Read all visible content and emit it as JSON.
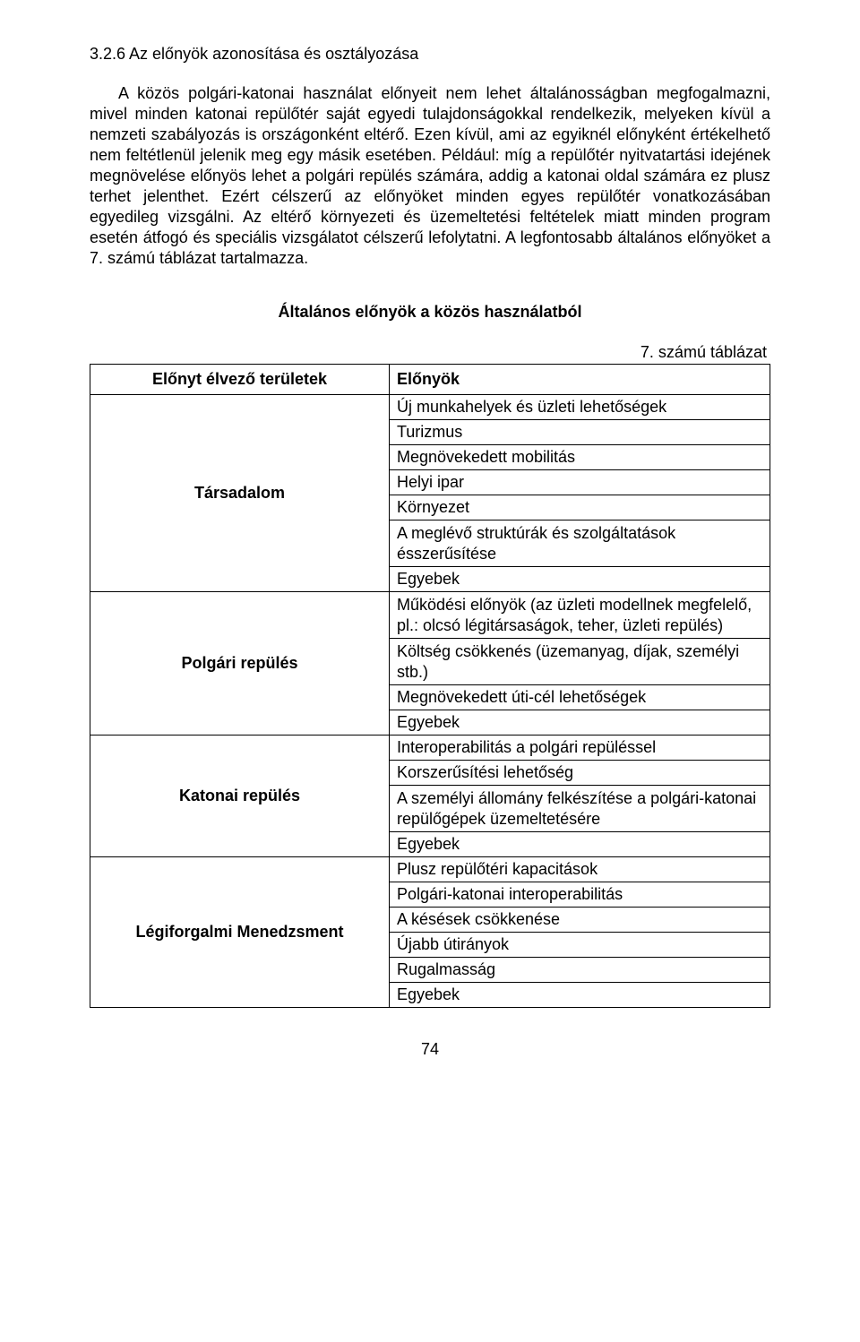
{
  "heading": "3.2.6  Az előnyök azonosítása és osztályozása",
  "paragraph": "A közös polgári-katonai használat előnyeit nem lehet általánosságban megfogalmazni, mivel minden katonai repülőtér saját egyedi tulajdonságokkal rendelkezik, melyeken kívül a nemzeti szabályozás is országonként eltérő. Ezen kívül, ami az egyiknél előnyként értékelhető nem feltétlenül jelenik meg egy másik esetében. Például: míg a repülőtér nyitvatartási idejének megnövelése előnyös lehet a polgári repülés számára, addig a katonai oldal számára ez plusz terhet jelenthet. Ezért célszerű az előnyöket minden egyes repülőtér vonatkozásában egyedileg vizsgálni. Az eltérő környezeti és üzemeltetési feltételek miatt minden program esetén átfogó és speciális vizsgálatot célszerű lefolytatni. A legfontosabb általános előnyöket a 7. számú táblázat tartalmazza.",
  "table_title": "Általános előnyök a közös használatból",
  "table_caption": "7.  számú táblázat",
  "headers": {
    "left": "Előnyt élvező területek",
    "right": "Előnyök"
  },
  "groups": [
    {
      "label": "Társadalom",
      "items": [
        "Új munkahelyek és üzleti lehetőségek",
        "Turizmus",
        "Megnövekedett mobilitás",
        "Helyi ipar",
        "Környezet",
        "A meglévő struktúrák és szolgáltatások ésszerűsítése",
        "Egyebek"
      ]
    },
    {
      "label": "Polgári repülés",
      "items": [
        "Működési előnyök (az üzleti modellnek megfelelő, pl.: olcsó légitársaságok, teher, üzleti repülés)",
        "Költség csökkenés (üzemanyag, díjak, személyi stb.)",
        "Megnövekedett úti-cél lehetőségek",
        "Egyebek"
      ]
    },
    {
      "label": "Katonai repülés",
      "items": [
        "Interoperabilitás a polgári repüléssel",
        "Korszerűsítési lehetőség",
        "A személyi állomány felkészítése a polgári-katonai repülőgépek üzemeltetésére",
        "Egyebek"
      ]
    },
    {
      "label": "Légiforgalmi Menedzsment",
      "items": [
        "Plusz repülőtéri kapacitások",
        "Polgári-katonai interoperabilitás",
        "A késések csökkenése",
        "Újabb útirányok",
        "Rugalmasság",
        "Egyebek"
      ]
    }
  ],
  "page_number": "74"
}
